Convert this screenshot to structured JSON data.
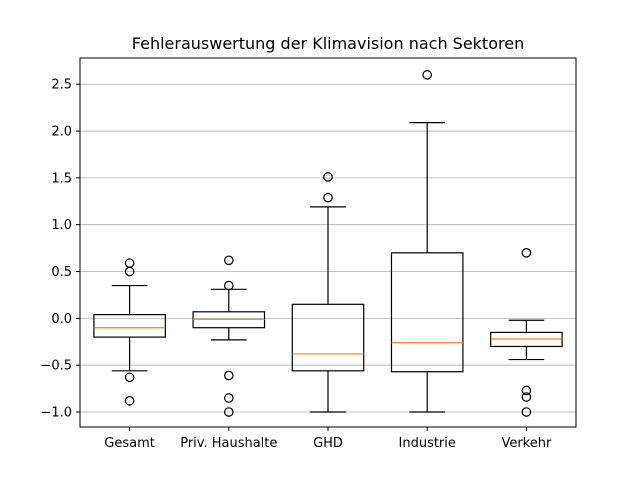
{
  "chart_data": {
    "type": "boxplot",
    "title": "Fehlerauswertung der Klimavision nach Sektoren",
    "xlabel": "",
    "ylabel": "",
    "ylim": [
      -1.16,
      2.78
    ],
    "yticks": [
      -1.0,
      -0.5,
      0.0,
      0.5,
      1.0,
      1.5,
      2.0,
      2.5
    ],
    "ytick_labels": [
      "−1.0",
      "−0.5",
      "0.0",
      "0.5",
      "1.0",
      "1.5",
      "2.0",
      "2.5"
    ],
    "grid": "horizontal",
    "categories": [
      "Gesamt",
      "Priv. Haushalte",
      "GHD",
      "Industrie",
      "Verkehr"
    ],
    "boxes": [
      {
        "whisker_low": -0.56,
        "q1": -0.2,
        "median": -0.1,
        "q3": 0.04,
        "whisker_high": 0.35,
        "outliers": [
          0.59,
          0.5,
          -0.63,
          -0.88
        ]
      },
      {
        "whisker_low": -0.23,
        "q1": -0.1,
        "median": -0.01,
        "q3": 0.07,
        "whisker_high": 0.31,
        "outliers": [
          0.62,
          0.35,
          -0.61,
          -0.85,
          -1.0
        ]
      },
      {
        "whisker_low": -1.0,
        "q1": -0.56,
        "median": -0.38,
        "q3": 0.15,
        "whisker_high": 1.19,
        "outliers": [
          1.51,
          1.29
        ]
      },
      {
        "whisker_low": -1.0,
        "q1": -0.57,
        "median": -0.26,
        "q3": 0.7,
        "whisker_high": 2.09,
        "outliers": [
          2.6
        ]
      },
      {
        "whisker_low": -0.44,
        "q1": -0.3,
        "median": -0.22,
        "q3": -0.15,
        "whisker_high": -0.02,
        "outliers": [
          0.7,
          -0.77,
          -0.84,
          -1.0
        ]
      }
    ],
    "colors": {
      "box": "#000000",
      "median": "#ff7f0e",
      "grid": "#b0b0b0"
    }
  }
}
